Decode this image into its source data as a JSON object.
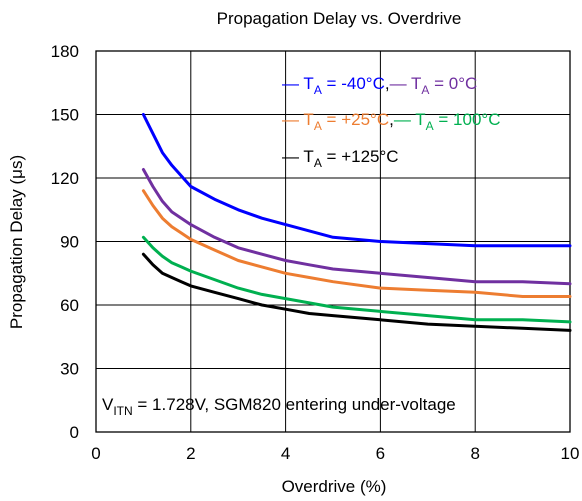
{
  "chart_data": {
    "type": "line",
    "title": "Propagation Delay vs. Overdrive",
    "xlabel": "Overdrive (%)",
    "ylabel": "Propagation Delay (μs)",
    "xlim": [
      0,
      10
    ],
    "ylim": [
      0,
      180
    ],
    "xticks": [
      0,
      2,
      4,
      6,
      8,
      10
    ],
    "yticks": [
      0,
      30,
      60,
      90,
      120,
      150,
      180
    ],
    "grid": true,
    "legend_position": "top-right",
    "series": [
      {
        "name": "T_A = -40°C",
        "label_prefix": "T",
        "label_sub": "A",
        "label_suffix": " = -40°C",
        "color": "#0000ff",
        "x": [
          1.0,
          1.2,
          1.4,
          1.6,
          1.8,
          2.0,
          2.5,
          3.0,
          3.5,
          4.0,
          4.5,
          5.0,
          6.0,
          7.0,
          8.0,
          9.0,
          10.0
        ],
        "y": [
          150,
          141,
          132,
          126,
          121,
          116,
          110,
          105,
          101,
          98,
          95,
          92,
          90,
          89,
          88,
          88,
          88
        ]
      },
      {
        "name": "T_A = 0°C",
        "label_prefix": "T",
        "label_sub": "A",
        "label_suffix": " = 0°C",
        "color": "#7030a0",
        "x": [
          1.0,
          1.2,
          1.4,
          1.6,
          1.8,
          2.0,
          2.5,
          3.0,
          3.5,
          4.0,
          4.5,
          5.0,
          6.0,
          7.0,
          8.0,
          9.0,
          10.0
        ],
        "y": [
          124,
          116,
          109,
          104,
          101,
          98,
          92,
          87,
          84,
          81,
          79,
          77,
          75,
          73,
          71,
          71,
          70
        ]
      },
      {
        "name": "T_A = +25°C",
        "label_prefix": "T",
        "label_sub": "A",
        "label_suffix": " = +25°C",
        "color": "#ed7d31",
        "x": [
          1.0,
          1.2,
          1.4,
          1.6,
          1.8,
          2.0,
          2.5,
          3.0,
          3.5,
          4.0,
          4.5,
          5.0,
          6.0,
          7.0,
          8.0,
          9.0,
          10.0
        ],
        "y": [
          114,
          107,
          101,
          97,
          94,
          91,
          86,
          81,
          78,
          75,
          73,
          71,
          68,
          67,
          66,
          64,
          64
        ]
      },
      {
        "name": "T_A = 100°C",
        "label_prefix": "T",
        "label_sub": "A",
        "label_suffix": " = 100°C",
        "color": "#00b050",
        "x": [
          1.0,
          1.2,
          1.4,
          1.6,
          1.8,
          2.0,
          2.5,
          3.0,
          3.5,
          4.0,
          4.5,
          5.0,
          6.0,
          7.0,
          8.0,
          9.0,
          10.0
        ],
        "y": [
          92,
          87,
          83,
          80,
          78,
          76,
          72,
          68,
          65,
          63,
          61,
          59,
          57,
          55,
          53,
          53,
          52
        ]
      },
      {
        "name": "T_A = +125°C",
        "label_prefix": "T",
        "label_sub": "A",
        "label_suffix": " = +125°C",
        "color": "#000000",
        "x": [
          1.0,
          1.2,
          1.4,
          1.6,
          1.8,
          2.0,
          2.5,
          3.0,
          3.5,
          4.0,
          4.5,
          5.0,
          6.0,
          7.0,
          8.0,
          9.0,
          10.0
        ],
        "y": [
          84,
          79,
          75,
          73,
          71,
          69,
          66,
          63,
          60,
          58,
          56,
          55,
          53,
          51,
          50,
          49,
          48
        ]
      }
    ],
    "annotation": {
      "prefix": "V",
      "sub": "ITN",
      "suffix": " = 1.728V, SGM820 entering under-voltage"
    }
  }
}
